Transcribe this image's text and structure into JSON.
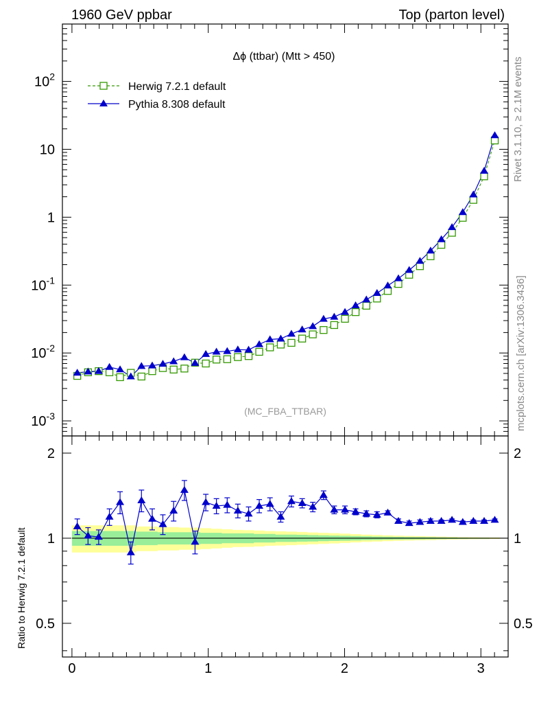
{
  "header": {
    "left": "1960 GeV ppbar",
    "right": "Top (parton level)"
  },
  "side": {
    "rivet": "Rivet 3.1.10, ≥ 2.1M events",
    "mcplots": "mcplots.cern.ch [arXiv:1306.3436]"
  },
  "plot_title": "Δϕ (ttbar) (Mtt > 450)",
  "analysis_tag": "(MC_FBA_TTBAR)",
  "ratio_ylabel": "Ratio to Herwig 7.2.1 default",
  "colors": {
    "herwig": "#339900",
    "pythia": "#0000cc",
    "band_inner": "#99ee99",
    "band_outer": "#ffff99"
  },
  "chart_data": [
    {
      "type": "scatter",
      "panel": "main",
      "yscale": "log",
      "xlim": [
        -0.07,
        3.2
      ],
      "ylim": [
        0.0006,
        700
      ],
      "ytick_labels": [
        "10^-3",
        "10^-2",
        "10^-1",
        "1",
        "10",
        "10^2"
      ],
      "x": [
        0.039,
        0.118,
        0.196,
        0.275,
        0.353,
        0.432,
        0.51,
        0.589,
        0.667,
        0.746,
        0.825,
        0.903,
        0.982,
        1.06,
        1.139,
        1.217,
        1.296,
        1.374,
        1.453,
        1.532,
        1.61,
        1.689,
        1.767,
        1.846,
        1.924,
        2.003,
        2.081,
        2.16,
        2.238,
        2.317,
        2.395,
        2.474,
        2.553,
        2.631,
        2.71,
        2.788,
        2.867,
        2.945,
        3.024,
        3.102
      ],
      "series": [
        {
          "name": "Herwig 7.2.1 default",
          "marker": "open-square",
          "line": "dashed",
          "values": [
            0.0046,
            0.0052,
            0.0054,
            0.0052,
            0.0044,
            0.0051,
            0.0045,
            0.0054,
            0.006,
            0.0057,
            0.0059,
            0.0072,
            0.007,
            0.008,
            0.0081,
            0.0087,
            0.009,
            0.0104,
            0.0121,
            0.0133,
            0.0141,
            0.0163,
            0.0188,
            0.0218,
            0.0258,
            0.0319,
            0.04,
            0.0497,
            0.0634,
            0.082,
            0.104,
            0.142,
            0.19,
            0.266,
            0.392,
            0.59,
            0.98,
            1.8,
            4.0,
            13.5
          ]
        },
        {
          "name": "Pythia 8.308 default",
          "marker": "filled-triangle",
          "line": "solid",
          "values": [
            0.0051,
            0.0053,
            0.0054,
            0.0062,
            0.0057,
            0.0045,
            0.0064,
            0.0065,
            0.0069,
            0.0075,
            0.0086,
            0.0071,
            0.0096,
            0.0104,
            0.0106,
            0.0112,
            0.0111,
            0.0134,
            0.0158,
            0.0162,
            0.0191,
            0.0221,
            0.0247,
            0.0317,
            0.034,
            0.04,
            0.05,
            0.061,
            0.076,
            0.098,
            0.125,
            0.166,
            0.226,
            0.32,
            0.47,
            0.71,
            1.18,
            2.15,
            4.8,
            16.0
          ]
        }
      ]
    },
    {
      "type": "scatter",
      "panel": "ratio",
      "xlabel": "",
      "ylabel": "Ratio to Herwig 7.2.1 default",
      "xlim": [
        -0.07,
        3.2
      ],
      "ylim": [
        0.38,
        2.3
      ],
      "x_ticks": [
        "0",
        "1",
        "2",
        "3"
      ],
      "y_ticks": [
        "0.5",
        "1",
        "2"
      ],
      "x": [
        0.039,
        0.118,
        0.196,
        0.275,
        0.353,
        0.432,
        0.51,
        0.589,
        0.667,
        0.746,
        0.825,
        0.903,
        0.982,
        1.06,
        1.139,
        1.217,
        1.296,
        1.374,
        1.453,
        1.532,
        1.61,
        1.689,
        1.767,
        1.846,
        1.924,
        2.003,
        2.081,
        2.16,
        2.238,
        2.317,
        2.395,
        2.474,
        2.553,
        2.631,
        2.71,
        2.788,
        2.867,
        2.945,
        3.024,
        3.102
      ],
      "series": [
        {
          "name": "Pythia 8.308 default",
          "values": [
            1.1,
            1.02,
            1.01,
            1.19,
            1.34,
            0.89,
            1.36,
            1.17,
            1.12,
            1.25,
            1.48,
            0.97,
            1.34,
            1.3,
            1.31,
            1.25,
            1.22,
            1.3,
            1.32,
            1.19,
            1.35,
            1.33,
            1.29,
            1.42,
            1.26,
            1.26,
            1.24,
            1.22,
            1.21,
            1.23,
            1.15,
            1.13,
            1.14,
            1.15,
            1.15,
            1.16,
            1.14,
            1.15,
            1.15,
            1.16
          ],
          "errors": [
            0.07,
            0.07,
            0.06,
            0.08,
            0.12,
            0.08,
            0.12,
            0.1,
            0.09,
            0.1,
            0.12,
            0.09,
            0.09,
            0.08,
            0.08,
            0.07,
            0.07,
            0.07,
            0.07,
            0.05,
            0.06,
            0.05,
            0.05,
            0.05,
            0.04,
            0.04,
            0.03,
            0.03,
            0.03,
            0.02,
            0.02,
            0.02,
            0.02,
            0.02,
            0.01,
            0.01,
            0.01,
            0.01,
            0.01,
            0.01
          ]
        }
      ],
      "band_inner_halfwidth": [
        0.06,
        0.06,
        0.06,
        0.06,
        0.06,
        0.06,
        0.055,
        0.055,
        0.05,
        0.05,
        0.05,
        0.05,
        0.045,
        0.045,
        0.04,
        0.04,
        0.04,
        0.035,
        0.035,
        0.03,
        0.03,
        0.028,
        0.026,
        0.024,
        0.022,
        0.02,
        0.018,
        0.016,
        0.014,
        0.012,
        0.011,
        0.01,
        0.009,
        0.008,
        0.007,
        0.006,
        0.005,
        0.004,
        0.004,
        0.003
      ],
      "band_outer_halfwidth": [
        0.11,
        0.11,
        0.11,
        0.11,
        0.11,
        0.11,
        0.1,
        0.1,
        0.095,
        0.095,
        0.09,
        0.09,
        0.085,
        0.08,
        0.075,
        0.07,
        0.068,
        0.065,
        0.06,
        0.058,
        0.055,
        0.052,
        0.048,
        0.045,
        0.042,
        0.038,
        0.034,
        0.03,
        0.027,
        0.024,
        0.021,
        0.019,
        0.017,
        0.015,
        0.013,
        0.011,
        0.009,
        0.008,
        0.007,
        0.006
      ]
    }
  ]
}
